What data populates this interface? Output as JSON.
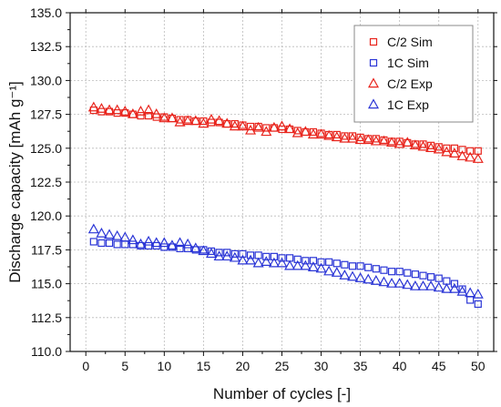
{
  "chart_data": {
    "type": "scatter",
    "xlabel": "Number of cycles [-]",
    "ylabel": "Discharge capacity [mAh g⁻¹]",
    "xlim": [
      -2,
      52
    ],
    "ylim": [
      110.0,
      135.0
    ],
    "x_ticks": [
      "0",
      "5",
      "10",
      "15",
      "20",
      "25",
      "30",
      "35",
      "40",
      "45",
      "50"
    ],
    "y_ticks": [
      "110.0",
      "112.5",
      "115.0",
      "117.5",
      "120.0",
      "122.5",
      "125.0",
      "127.5",
      "130.0",
      "132.5",
      "135.0"
    ],
    "grid": true,
    "legend_position": "top-right",
    "series": [
      {
        "name": "C/2 Sim",
        "marker": "square",
        "color": "#e8241c",
        "x": [
          1,
          2,
          3,
          4,
          5,
          6,
          7,
          8,
          9,
          10,
          11,
          12,
          13,
          14,
          15,
          16,
          17,
          18,
          19,
          20,
          21,
          22,
          23,
          24,
          25,
          26,
          27,
          28,
          29,
          30,
          31,
          32,
          33,
          34,
          35,
          36,
          37,
          38,
          39,
          40,
          41,
          42,
          43,
          44,
          45,
          46,
          47,
          48,
          49,
          50
        ],
        "values": [
          127.8,
          127.7,
          127.7,
          127.6,
          127.6,
          127.5,
          127.4,
          127.4,
          127.3,
          127.3,
          127.2,
          127.1,
          127.1,
          127.0,
          127.0,
          126.9,
          126.9,
          126.8,
          126.8,
          126.7,
          126.6,
          126.6,
          126.5,
          126.5,
          126.4,
          126.4,
          126.3,
          126.2,
          126.2,
          126.1,
          126.0,
          126.0,
          125.9,
          125.9,
          125.8,
          125.7,
          125.7,
          125.6,
          125.5,
          125.5,
          125.4,
          125.3,
          125.3,
          125.2,
          125.1,
          125.0,
          125.0,
          124.9,
          124.8,
          124.8
        ]
      },
      {
        "name": "1C Sim",
        "marker": "square",
        "color": "#2a35d6",
        "x": [
          1,
          2,
          3,
          4,
          5,
          6,
          7,
          8,
          9,
          10,
          11,
          12,
          13,
          14,
          15,
          16,
          17,
          18,
          19,
          20,
          21,
          22,
          23,
          24,
          25,
          26,
          27,
          28,
          29,
          30,
          31,
          32,
          33,
          34,
          35,
          36,
          37,
          38,
          39,
          40,
          41,
          42,
          43,
          44,
          45,
          46,
          47,
          48,
          49,
          50
        ],
        "values": [
          118.1,
          118.0,
          118.0,
          117.9,
          117.9,
          117.9,
          117.8,
          117.8,
          117.8,
          117.7,
          117.7,
          117.6,
          117.6,
          117.5,
          117.5,
          117.4,
          117.3,
          117.3,
          117.2,
          117.2,
          117.1,
          117.1,
          117.0,
          117.0,
          116.9,
          116.9,
          116.8,
          116.7,
          116.7,
          116.6,
          116.6,
          116.5,
          116.4,
          116.3,
          116.3,
          116.2,
          116.1,
          116.0,
          115.9,
          115.9,
          115.8,
          115.7,
          115.6,
          115.5,
          115.4,
          115.2,
          115.0,
          114.6,
          113.8,
          113.5
        ]
      },
      {
        "name": "C/2 Exp",
        "marker": "triangle",
        "color": "#e8241c",
        "x": [
          1,
          2,
          3,
          4,
          5,
          6,
          7,
          8,
          9,
          10,
          11,
          12,
          13,
          14,
          15,
          16,
          17,
          18,
          19,
          20,
          21,
          22,
          23,
          24,
          25,
          26,
          27,
          28,
          29,
          30,
          31,
          32,
          33,
          34,
          35,
          36,
          37,
          38,
          39,
          40,
          41,
          42,
          43,
          44,
          45,
          46,
          47,
          48,
          49,
          50
        ],
        "values": [
          128.0,
          127.9,
          127.8,
          127.8,
          127.7,
          127.5,
          127.7,
          127.8,
          127.5,
          127.2,
          127.2,
          126.9,
          127.0,
          127.0,
          126.8,
          127.1,
          127.0,
          126.8,
          126.6,
          126.6,
          126.3,
          126.5,
          126.2,
          126.5,
          126.6,
          126.4,
          126.1,
          126.2,
          126.0,
          126.0,
          125.9,
          125.8,
          125.7,
          125.7,
          125.6,
          125.6,
          125.5,
          125.5,
          125.4,
          125.3,
          125.4,
          125.2,
          125.1,
          125.0,
          124.9,
          124.7,
          124.6,
          124.4,
          124.3,
          124.2
        ]
      },
      {
        "name": "1C Exp",
        "marker": "triangle",
        "color": "#2a35d6",
        "x": [
          1,
          2,
          3,
          4,
          5,
          6,
          7,
          8,
          9,
          10,
          11,
          12,
          13,
          14,
          15,
          16,
          17,
          18,
          19,
          20,
          21,
          22,
          23,
          24,
          25,
          26,
          27,
          28,
          29,
          30,
          31,
          32,
          33,
          34,
          35,
          36,
          37,
          38,
          39,
          40,
          41,
          42,
          43,
          44,
          45,
          46,
          47,
          48,
          49,
          50
        ],
        "values": [
          119.0,
          118.7,
          118.6,
          118.5,
          118.4,
          118.2,
          117.9,
          118.1,
          118.0,
          118.0,
          117.8,
          118.0,
          117.9,
          117.6,
          117.4,
          117.2,
          117.0,
          117.0,
          116.9,
          116.7,
          116.7,
          116.5,
          116.6,
          116.5,
          116.5,
          116.3,
          116.3,
          116.3,
          116.2,
          116.1,
          115.9,
          115.8,
          115.6,
          115.5,
          115.4,
          115.3,
          115.2,
          115.1,
          115.0,
          115.0,
          114.9,
          114.8,
          114.8,
          114.8,
          114.7,
          114.6,
          114.6,
          114.4,
          114.3,
          114.2
        ]
      }
    ]
  }
}
